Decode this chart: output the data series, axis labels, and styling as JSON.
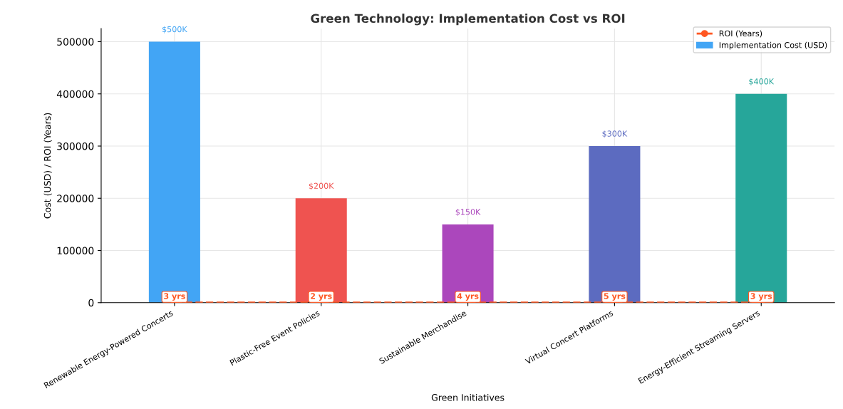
{
  "chart_data": {
    "type": "bar",
    "title": "Green Technology: Implementation Cost vs ROI",
    "xlabel": "Green Initiatives",
    "ylabel": "Cost (USD) / ROI (Years)",
    "categories": [
      "Renewable Energy-Powered Concerts",
      "Plastic-Free Event Policies",
      "Sustainable Merchandise",
      "Virtual Concert Platforms",
      "Energy-Efficient Streaming Servers"
    ],
    "series": [
      {
        "name": "Implementation Cost (USD)",
        "colors": [
          "#42a5f5",
          "#ef5350",
          "#ab47bc",
          "#5c6bc0",
          "#26a69a"
        ],
        "values": [
          500000,
          200000,
          150000,
          300000,
          400000
        ],
        "value_labels": [
          "$500K",
          "$200K",
          "$150K",
          "$300K",
          "$400K"
        ]
      },
      {
        "name": "ROI (Years)",
        "type": "line",
        "color": "#ff5722",
        "marker": "circle",
        "line_style": "dashed",
        "values": [
          3,
          2,
          4,
          5,
          3
        ],
        "value_labels": [
          "3 yrs",
          "2 yrs",
          "4 yrs",
          "5 yrs",
          "3 yrs"
        ]
      }
    ],
    "ylim": [
      0,
      525000
    ],
    "yticks": [
      0,
      100000,
      200000,
      300000,
      400000,
      500000
    ],
    "grid": true,
    "legend": "top right"
  }
}
